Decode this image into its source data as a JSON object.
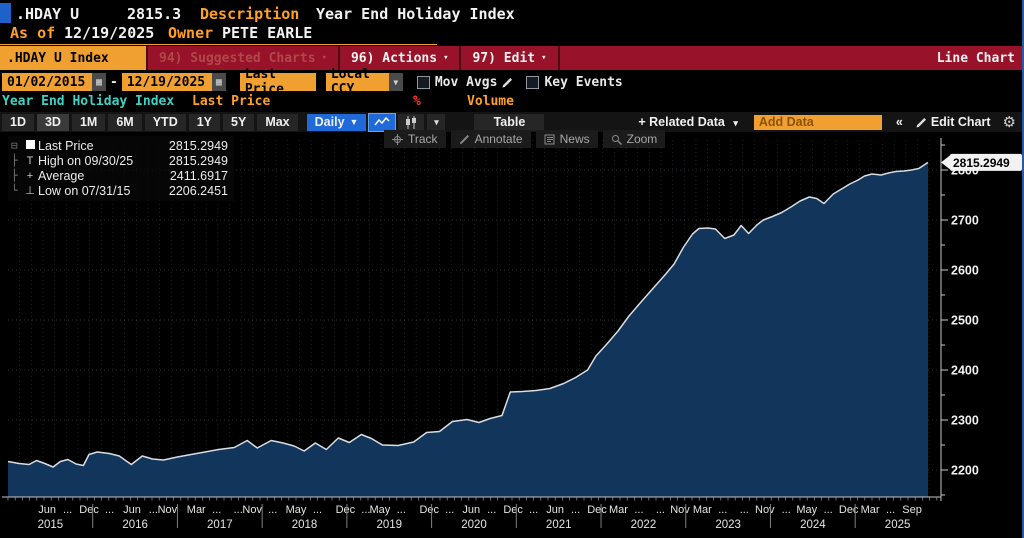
{
  "colors": {
    "amber": "#f0a030",
    "amber_text": "#ffa028",
    "red_bar": "#98122a",
    "blue": "#1f6ad8",
    "cyan": "#3fd2c4",
    "area_fill": "#12355b",
    "line": "#d9dde2",
    "percent_red": "#ff3b30"
  },
  "titlebar": {
    "ticker": ".HDAY U",
    "price": "2815.3",
    "description_label": "Description",
    "description": "Year End Holiday Index",
    "asof_label": "As of",
    "asof_date": "12/19/2025",
    "owner_label": "Owner",
    "owner": "PETE EARLE"
  },
  "menubar": {
    "security": ".HDAY U Index",
    "suggested": "94) Suggested Charts",
    "actions": "96) Actions",
    "edit": "97) Edit",
    "view": "Line Chart"
  },
  "controls": {
    "date_from": "01/02/2015",
    "date_sep": "-",
    "date_to": "12/19/2025",
    "field": "Last Price",
    "currency": "Local CCY",
    "mov_avgs": "Mov Avgs",
    "key_events": "Key Events",
    "security_name": "Year End Holiday Index",
    "study": "Last Price",
    "percent": "%",
    "volume": "Volume"
  },
  "toolbar": {
    "periods": [
      "1D",
      "3D",
      "1M",
      "6M",
      "YTD",
      "1Y",
      "5Y",
      "Max"
    ],
    "highlighted_period": "3D",
    "frequency": "Daily",
    "table": "Table",
    "related": "+ Related Data",
    "add_data_placeholder": "Add Data",
    "collapse": "«",
    "edit_chart": "Edit Chart"
  },
  "chart_tools": [
    "Track",
    "Annotate",
    "News",
    "Zoom"
  ],
  "legend": {
    "rows": [
      {
        "tree": "⊟",
        "icon": "square",
        "label": "Last Price",
        "value": "2815.2949"
      },
      {
        "tree": "├",
        "icon": "high",
        "label": "High on 09/30/25",
        "value": "2815.2949"
      },
      {
        "tree": "├",
        "icon": "avg",
        "label": "Average",
        "value": "2411.6917"
      },
      {
        "tree": "└",
        "icon": "low",
        "label": "Low on 07/31/15",
        "value": "2206.2451"
      }
    ]
  },
  "chart_data": {
    "type": "line",
    "title": "Year End Holiday Index (.HDAY U Index) - Last Price, Daily",
    "x_range": [
      "01/02/2015",
      "12/19/2025"
    ],
    "ylim": [
      2146,
      2860
    ],
    "yticks_major": [
      2200,
      2300,
      2400,
      2500,
      2600,
      2700,
      2800
    ],
    "ytick_minor_step": 50,
    "grid": "dotted",
    "legend_position": "top-left",
    "last_price": "2815.2949",
    "stats": {
      "last": 2815.2949,
      "high": 2815.2949,
      "high_date": "09/30/25",
      "average": 2411.6917,
      "low": 2206.2451,
      "low_date": "07/31/15"
    },
    "points": [
      [
        0.0,
        2217
      ],
      [
        0.012,
        2213
      ],
      [
        0.023,
        2211
      ],
      [
        0.031,
        2219
      ],
      [
        0.04,
        2213
      ],
      [
        0.049,
        2206
      ],
      [
        0.057,
        2217
      ],
      [
        0.065,
        2221
      ],
      [
        0.074,
        2212
      ],
      [
        0.082,
        2209
      ],
      [
        0.088,
        2231
      ],
      [
        0.097,
        2236
      ],
      [
        0.11,
        2233
      ],
      [
        0.121,
        2228
      ],
      [
        0.134,
        2211
      ],
      [
        0.146,
        2228
      ],
      [
        0.157,
        2222
      ],
      [
        0.169,
        2220
      ],
      [
        0.184,
        2226
      ],
      [
        0.199,
        2231
      ],
      [
        0.214,
        2236
      ],
      [
        0.229,
        2241
      ],
      [
        0.246,
        2245
      ],
      [
        0.26,
        2259
      ],
      [
        0.271,
        2244
      ],
      [
        0.286,
        2259
      ],
      [
        0.299,
        2254
      ],
      [
        0.311,
        2248
      ],
      [
        0.322,
        2238
      ],
      [
        0.334,
        2254
      ],
      [
        0.346,
        2241
      ],
      [
        0.359,
        2264
      ],
      [
        0.371,
        2255
      ],
      [
        0.384,
        2271
      ],
      [
        0.395,
        2263
      ],
      [
        0.407,
        2250
      ],
      [
        0.424,
        2249
      ],
      [
        0.441,
        2256
      ],
      [
        0.455,
        2275
      ],
      [
        0.469,
        2277
      ],
      [
        0.483,
        2297
      ],
      [
        0.499,
        2301
      ],
      [
        0.512,
        2295
      ],
      [
        0.524,
        2303
      ],
      [
        0.537,
        2309
      ],
      [
        0.546,
        2356
      ],
      [
        0.559,
        2357
      ],
      [
        0.574,
        2359
      ],
      [
        0.589,
        2363
      ],
      [
        0.604,
        2373
      ],
      [
        0.617,
        2385
      ],
      [
        0.63,
        2400
      ],
      [
        0.639,
        2428
      ],
      [
        0.651,
        2452
      ],
      [
        0.663,
        2478
      ],
      [
        0.675,
        2508
      ],
      [
        0.689,
        2538
      ],
      [
        0.702,
        2565
      ],
      [
        0.714,
        2590
      ],
      [
        0.724,
        2612
      ],
      [
        0.734,
        2645
      ],
      [
        0.744,
        2672
      ],
      [
        0.751,
        2683
      ],
      [
        0.761,
        2684
      ],
      [
        0.769,
        2682
      ],
      [
        0.779,
        2663
      ],
      [
        0.789,
        2670
      ],
      [
        0.797,
        2689
      ],
      [
        0.805,
        2673
      ],
      [
        0.814,
        2690
      ],
      [
        0.821,
        2700
      ],
      [
        0.831,
        2707
      ],
      [
        0.841,
        2715
      ],
      [
        0.851,
        2726
      ],
      [
        0.861,
        2738
      ],
      [
        0.871,
        2746
      ],
      [
        0.879,
        2743
      ],
      [
        0.887,
        2733
      ],
      [
        0.897,
        2752
      ],
      [
        0.907,
        2763
      ],
      [
        0.915,
        2772
      ],
      [
        0.924,
        2780
      ],
      [
        0.931,
        2788
      ],
      [
        0.939,
        2792
      ],
      [
        0.949,
        2790
      ],
      [
        0.957,
        2794
      ],
      [
        0.965,
        2797
      ],
      [
        0.974,
        2798
      ],
      [
        0.982,
        2800
      ],
      [
        0.99,
        2803
      ],
      [
        1.0,
        2815.29
      ]
    ],
    "x_month_labels": {
      "labels": [
        "Jun",
        "...",
        "Dec",
        "...",
        "Jun",
        "...",
        "Nov",
        "Mar",
        "...",
        "...",
        "Nov",
        "...",
        "May",
        "...",
        "Dec",
        "...",
        "May",
        "...",
        "Dec",
        "...",
        "Jun",
        "...",
        "Dec",
        "...",
        "Jun",
        "...",
        "Dec",
        "Mar",
        "...",
        "...",
        "Nov",
        "Mar",
        "...",
        "...",
        "Nov",
        "...",
        "May",
        "...",
        "Dec",
        "Mar",
        "...",
        "Sep"
      ],
      "pos": [
        0.042,
        0.064,
        0.087,
        0.109,
        0.133,
        0.156,
        0.171,
        0.202,
        0.224,
        0.247,
        0.262,
        0.284,
        0.309,
        0.332,
        0.362,
        0.384,
        0.399,
        0.422,
        0.452,
        0.474,
        0.497,
        0.519,
        0.542,
        0.564,
        0.587,
        0.609,
        0.632,
        0.655,
        0.677,
        0.7,
        0.721,
        0.745,
        0.767,
        0.79,
        0.812,
        0.835,
        0.857,
        0.88,
        0.902,
        0.925,
        0.947,
        0.97
      ]
    },
    "x_year_labels": {
      "labels": [
        "2015",
        "2016",
        "2017",
        "2018",
        "2019",
        "2020",
        "2021",
        "2022",
        "2023",
        "2024",
        "2025"
      ],
      "pos": [
        0.0455,
        0.1364,
        0.2273,
        0.3182,
        0.4091,
        0.5,
        0.5909,
        0.6818,
        0.7727,
        0.8636,
        0.9545
      ]
    }
  }
}
